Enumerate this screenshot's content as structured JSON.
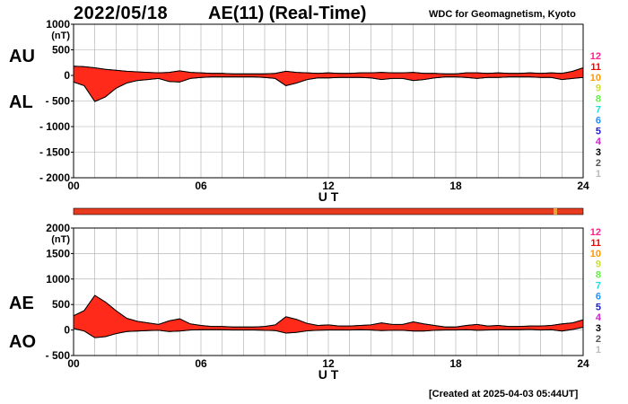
{
  "header": {
    "date": "2022/05/18",
    "title": "AE(11) (Real-Time)",
    "source": "WDC for Geomagnetism, Kyoto"
  },
  "footer": {
    "created": "[Created at 2025-04-03 05:44UT]"
  },
  "colors": {
    "fill": "#ff2a1a",
    "bar": "#e83a1e",
    "bar_tick": "#f0a030",
    "grid": "#aaaaaa"
  },
  "station_scale": {
    "labels": [
      "12",
      "11",
      "10",
      "9",
      "8",
      "7",
      "6",
      "5",
      "4",
      "3",
      "2",
      "1"
    ],
    "colors": [
      "#ff1e8c",
      "#ff0000",
      "#ff9900",
      "#ccdd33",
      "#66ee44",
      "#22dddd",
      "#1e90ff",
      "#1e1ecc",
      "#cc22cc",
      "#000000",
      "#555555",
      "#bbbbbb"
    ]
  },
  "chart_data": [
    {
      "type": "area",
      "panel": "AU/AL",
      "left_labels": [
        "AU",
        "AL"
      ],
      "ylabel": "(nT)",
      "xlabel": "U T",
      "xlim": [
        0,
        24
      ],
      "ylim": [
        -2000,
        1000
      ],
      "yticks": [
        "1000",
        "500",
        "0",
        "- 500",
        "- 1000",
        "- 1500",
        "- 2000"
      ],
      "yticks_values": [
        1000,
        500,
        0,
        -500,
        -1000,
        -1500,
        -2000
      ],
      "xticks": [
        "00",
        "06",
        "12",
        "18",
        "24"
      ],
      "x": [
        0,
        0.5,
        1,
        1.5,
        2,
        2.5,
        3,
        3.5,
        4,
        4.5,
        5,
        5.5,
        6,
        6.5,
        7,
        7.5,
        8,
        8.5,
        9,
        9.5,
        10,
        10.5,
        11,
        11.5,
        12,
        12.5,
        13,
        13.5,
        14,
        14.5,
        15,
        15.5,
        16,
        16.5,
        17,
        17.5,
        18,
        18.5,
        19,
        19.5,
        20,
        20.5,
        21,
        21.5,
        22,
        22.5,
        23,
        23.5,
        24
      ],
      "series": [
        {
          "name": "AU",
          "values": [
            180,
            170,
            150,
            120,
            100,
            80,
            70,
            60,
            50,
            60,
            90,
            60,
            50,
            40,
            40,
            30,
            30,
            30,
            30,
            40,
            80,
            60,
            50,
            40,
            50,
            40,
            40,
            50,
            50,
            60,
            50,
            50,
            60,
            40,
            40,
            30,
            30,
            50,
            50,
            40,
            50,
            40,
            40,
            50,
            40,
            50,
            40,
            80,
            150
          ]
        },
        {
          "name": "AL",
          "values": [
            -130,
            -200,
            -510,
            -420,
            -250,
            -150,
            -100,
            -80,
            -60,
            -120,
            -130,
            -60,
            -40,
            -30,
            -30,
            -30,
            -30,
            -30,
            -40,
            -60,
            -200,
            -150,
            -80,
            -50,
            -50,
            -40,
            -40,
            -40,
            -50,
            -80,
            -60,
            -60,
            -100,
            -80,
            -50,
            -30,
            -30,
            -40,
            -60,
            -40,
            -40,
            -30,
            -30,
            -30,
            -40,
            -40,
            -80,
            -60,
            -40
          ]
        }
      ]
    },
    {
      "type": "area",
      "panel": "AE/AO",
      "left_labels": [
        "AE",
        "AO"
      ],
      "ylabel": "(nT)",
      "xlabel": "U T",
      "xlim": [
        0,
        24
      ],
      "ylim": [
        -500,
        2000
      ],
      "yticks": [
        "2000",
        "1500",
        "1000",
        "500",
        "0",
        "- 500"
      ],
      "yticks_values": [
        2000,
        1500,
        1000,
        500,
        0,
        -500
      ],
      "xticks": [
        "00",
        "06",
        "12",
        "18",
        "24"
      ],
      "x": [
        0,
        0.5,
        1,
        1.5,
        2,
        2.5,
        3,
        3.5,
        4,
        4.5,
        5,
        5.5,
        6,
        6.5,
        7,
        7.5,
        8,
        8.5,
        9,
        9.5,
        10,
        10.5,
        11,
        11.5,
        12,
        12.5,
        13,
        13.5,
        14,
        14.5,
        15,
        15.5,
        16,
        16.5,
        17,
        17.5,
        18,
        18.5,
        19,
        19.5,
        20,
        20.5,
        21,
        21.5,
        22,
        22.5,
        23,
        23.5,
        24
      ],
      "series": [
        {
          "name": "AE",
          "values": [
            280,
            380,
            680,
            550,
            380,
            230,
            170,
            140,
            110,
            180,
            220,
            120,
            90,
            70,
            70,
            60,
            60,
            60,
            70,
            100,
            260,
            210,
            130,
            90,
            100,
            80,
            80,
            90,
            100,
            140,
            110,
            110,
            160,
            120,
            90,
            60,
            60,
            90,
            110,
            80,
            90,
            70,
            70,
            80,
            80,
            90,
            120,
            140,
            200
          ]
        },
        {
          "name": "AO",
          "values": [
            30,
            -20,
            -150,
            -130,
            -70,
            -30,
            -20,
            -10,
            -5,
            -30,
            -20,
            0,
            5,
            5,
            5,
            0,
            0,
            0,
            -5,
            -10,
            -60,
            -45,
            -15,
            -5,
            0,
            0,
            0,
            5,
            0,
            -10,
            -5,
            -5,
            -20,
            -20,
            -5,
            0,
            0,
            5,
            -5,
            0,
            5,
            5,
            5,
            10,
            0,
            5,
            -20,
            10,
            55
          ]
        }
      ]
    }
  ]
}
